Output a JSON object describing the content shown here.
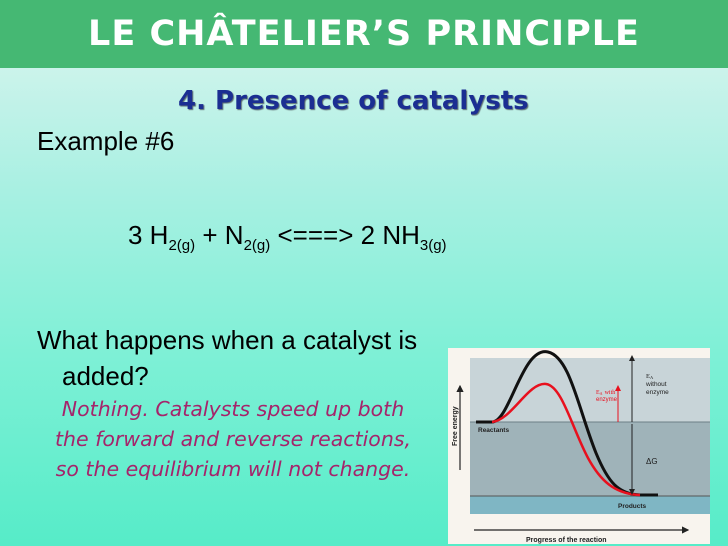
{
  "slide": {
    "title": "LE CHÂTELIER’S PRINCIPLE",
    "subtitle": "4. Presence of catalysts",
    "example_label": "Example #6",
    "equation": {
      "coef_h2": "3 H",
      "sub_h2": "2(g)",
      "plus_n2": " + N",
      "sub_n2": "2(g)",
      "arrow_nh3": " <===> 2 NH",
      "sub_nh3": "3(g)"
    },
    "question_line1": "What happens when a catalyst is",
    "question_line2": "added?",
    "answer": "Nothing. Catalysts speed up both the forward and reverse reactions, so the equilibrium will not change."
  },
  "graph": {
    "y_axis_label": "Free energy",
    "x_axis_label": "Progress of the reaction",
    "reactants_label": "Reactants",
    "products_label": "Products",
    "ea_with_enzyme_line1": "E",
    "ea_with_enzyme_sub": "A",
    "ea_with_enzyme_line2": "with",
    "ea_with_enzyme_line3": "enzyme",
    "ea_without_line1": "E",
    "ea_without_sub": "A",
    "ea_without_line2": "without",
    "ea_without_line3": "enzyme",
    "delta_g_label": "ΔG",
    "colors": {
      "uncatalyzed_curve": "#111111",
      "catalyzed_curve": "#e8101e",
      "ea_with_arrow": "#e8101e",
      "upper_band": "#c8d4d8",
      "lower_band": "#9fb3b9",
      "products_band": "#7fb6c4"
    }
  }
}
